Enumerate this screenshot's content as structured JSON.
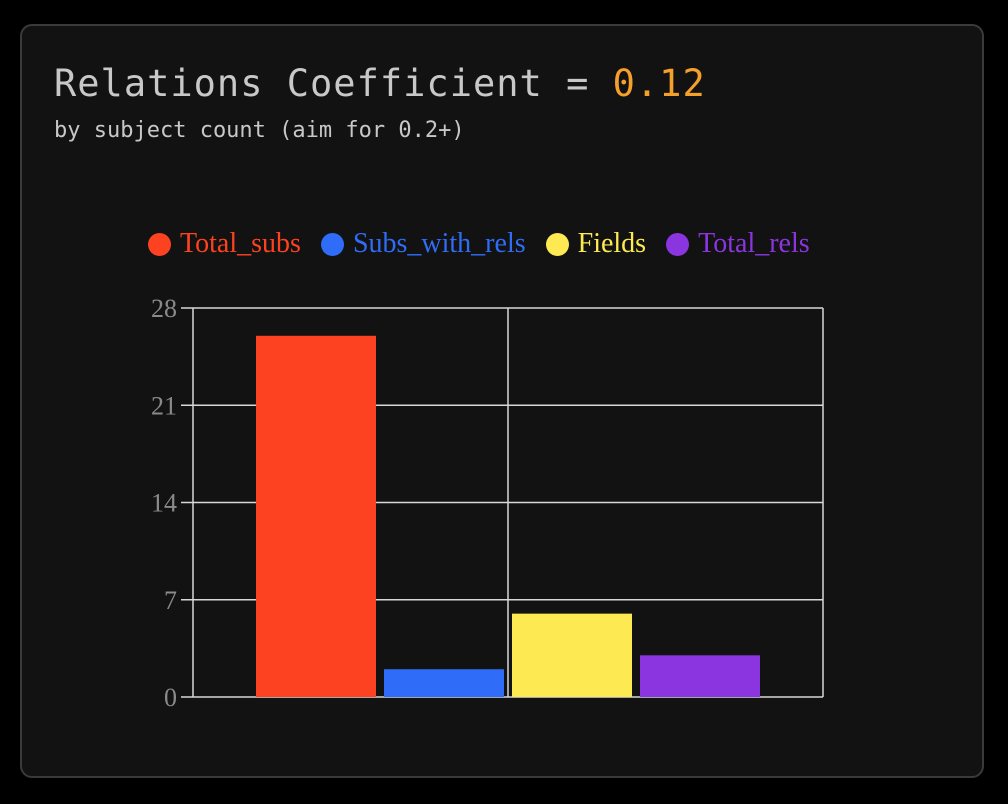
{
  "header": {
    "title_prefix": "Relations Coefficient = ",
    "coefficient": "0.12",
    "subtitle": "by subject count (aim for 0.2+)"
  },
  "colors": {
    "title": "#c8c8c8",
    "coefficient": "#f5a02a",
    "background": "#121212",
    "grid": "#d8d8d8",
    "tick_label": "#8a8a8a"
  },
  "chart_data": {
    "type": "bar",
    "categories": [
      ""
    ],
    "series": [
      {
        "name": "Total_subs",
        "values": [
          26
        ],
        "color": "#fc4220"
      },
      {
        "name": "Subs_with_rels",
        "values": [
          2
        ],
        "color": "#2f6cf7"
      },
      {
        "name": "Fields",
        "values": [
          6
        ],
        "color": "#fde952"
      },
      {
        "name": "Total_rels",
        "values": [
          3
        ],
        "color": "#8b35e0"
      }
    ],
    "yticks": [
      "0",
      "7",
      "14",
      "21",
      "28"
    ],
    "ylim": [
      0,
      28
    ],
    "xlabel": "",
    "ylabel": "",
    "grid": true,
    "legend_position": "top"
  }
}
